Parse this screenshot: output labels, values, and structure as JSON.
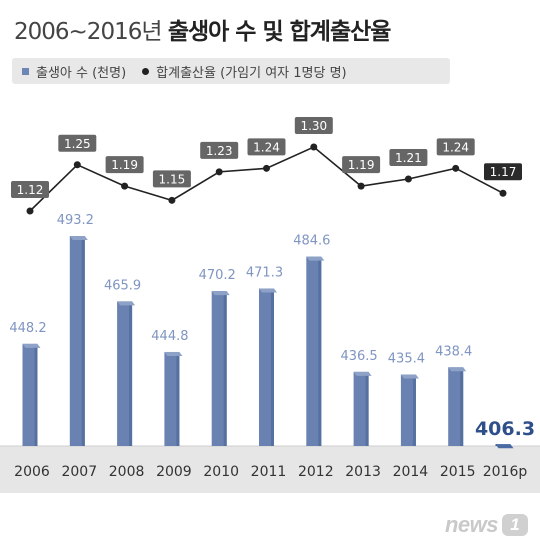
{
  "title": {
    "light": "2006~2016년",
    "bold": "출생아 수 및 합계출산율"
  },
  "legend": {
    "births": "출생아 수 (천명)",
    "fertility": "합계출산율 (가임기 여자 1명당 명)"
  },
  "colors": {
    "bar": "#6a82b2",
    "bar_highlight": "#2f4f8a",
    "label": "#7f95c2",
    "label_highlight": "#2f4f8a",
    "line": "#222222",
    "box": "#666666",
    "box_highlight": "#2a2a2a",
    "axis_band": "#e6e6e6"
  },
  "watermark": {
    "text": "news",
    "badge": "1"
  },
  "chart_data": {
    "type": "bar",
    "categories": [
      "2006",
      "2007",
      "2008",
      "2009",
      "2010",
      "2011",
      "2012",
      "2013",
      "2014",
      "2015",
      "2016p"
    ],
    "series": [
      {
        "name": "출생아 수 (천명)",
        "type": "bar",
        "values": [
          448.2,
          493.2,
          465.9,
          444.8,
          470.2,
          471.3,
          484.6,
          436.5,
          435.4,
          438.4,
          406.3
        ]
      },
      {
        "name": "합계출산율 (가임기 여자 1명당 명)",
        "type": "line",
        "values": [
          1.12,
          1.25,
          1.19,
          1.15,
          1.23,
          1.24,
          1.3,
          1.19,
          1.21,
          1.24,
          1.17
        ]
      }
    ],
    "bar_value_labels": [
      "448.2",
      "493.2",
      "465.9",
      "444.8",
      "470.2",
      "471.3",
      "484.6",
      "436.5",
      "435.4",
      "438.4",
      "406.3"
    ],
    "line_value_labels": [
      "1.12",
      "1.25",
      "1.19",
      "1.15",
      "1.23",
      "1.24",
      "1.30",
      "1.19",
      "1.21",
      "1.24",
      "1.17"
    ],
    "highlight_index": 10
  }
}
